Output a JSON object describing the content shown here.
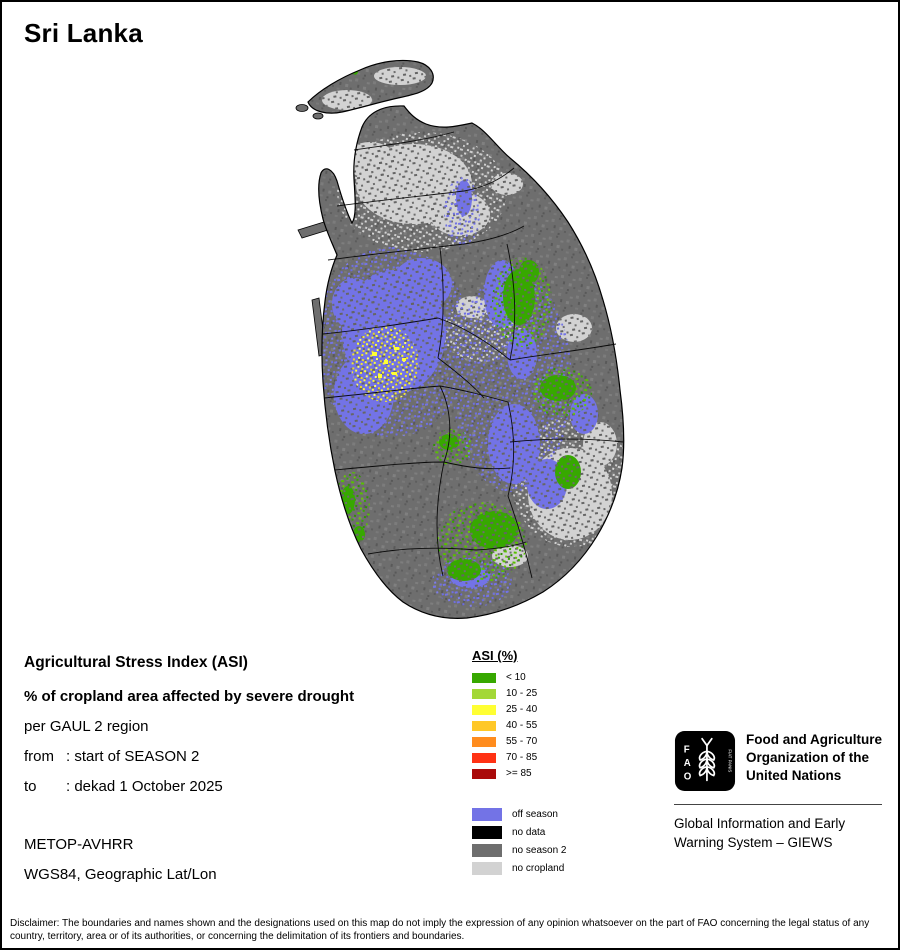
{
  "page": {
    "title": "Sri Lanka"
  },
  "info": {
    "heading": "Agricultural Stress Index (ASI)",
    "subheading": "% of cropland area affected by severe drought",
    "region_line": "per GAUL 2 region",
    "from_label": "from",
    "from_value": ": start of SEASON 2",
    "to_label": "to",
    "to_value": ": dekad 1 October 2025",
    "sensor": "METOP-AVHRR",
    "projection": "WGS84, Geographic Lat/Lon"
  },
  "legend": {
    "title": "ASI (%)",
    "asi_classes": [
      {
        "label": "< 10",
        "color": "#37a800"
      },
      {
        "label": "10 - 25",
        "color": "#a3d837"
      },
      {
        "label": "25 - 40",
        "color": "#ffff33"
      },
      {
        "label": "40 - 55",
        "color": "#ffc828"
      },
      {
        "label": "55 - 70",
        "color": "#ff8c1e"
      },
      {
        "label": "70 - 85",
        "color": "#ff3214"
      },
      {
        "label": ">= 85",
        "color": "#aa0a0a"
      }
    ],
    "other_classes": [
      {
        "label": "off season",
        "color": "#7373e6"
      },
      {
        "label": "no data",
        "color": "#000000"
      },
      {
        "label": "no season 2",
        "color": "#6e6e6e"
      },
      {
        "label": "no cropland",
        "color": "#d2d2d2"
      }
    ]
  },
  "map": {
    "colors": {
      "no_season": "#6e6e6e",
      "no_cropland": "#d2d2d2",
      "off_season": "#7373e6",
      "asi_low": "#37a800",
      "asi_yellow": "#ffff33",
      "boundary": "#000000"
    }
  },
  "footer": {
    "fao_letters": [
      "F",
      "A",
      "O"
    ],
    "fao_motto": "FIAT PANIS",
    "org_lines": [
      "Food and Agriculture",
      "Organization of the",
      "United Nations"
    ],
    "giews_lines": [
      "Global Information and Early",
      "Warning System – GIEWS"
    ],
    "disclaimer": "Disclaimer: The boundaries and names shown and the designations used on this map do not imply the expression of any opinion whatsoever on the part of FAO concerning the legal status of any country, territory, area or of its authorities, or concerning the delimitation of its frontiers and boundaries."
  }
}
